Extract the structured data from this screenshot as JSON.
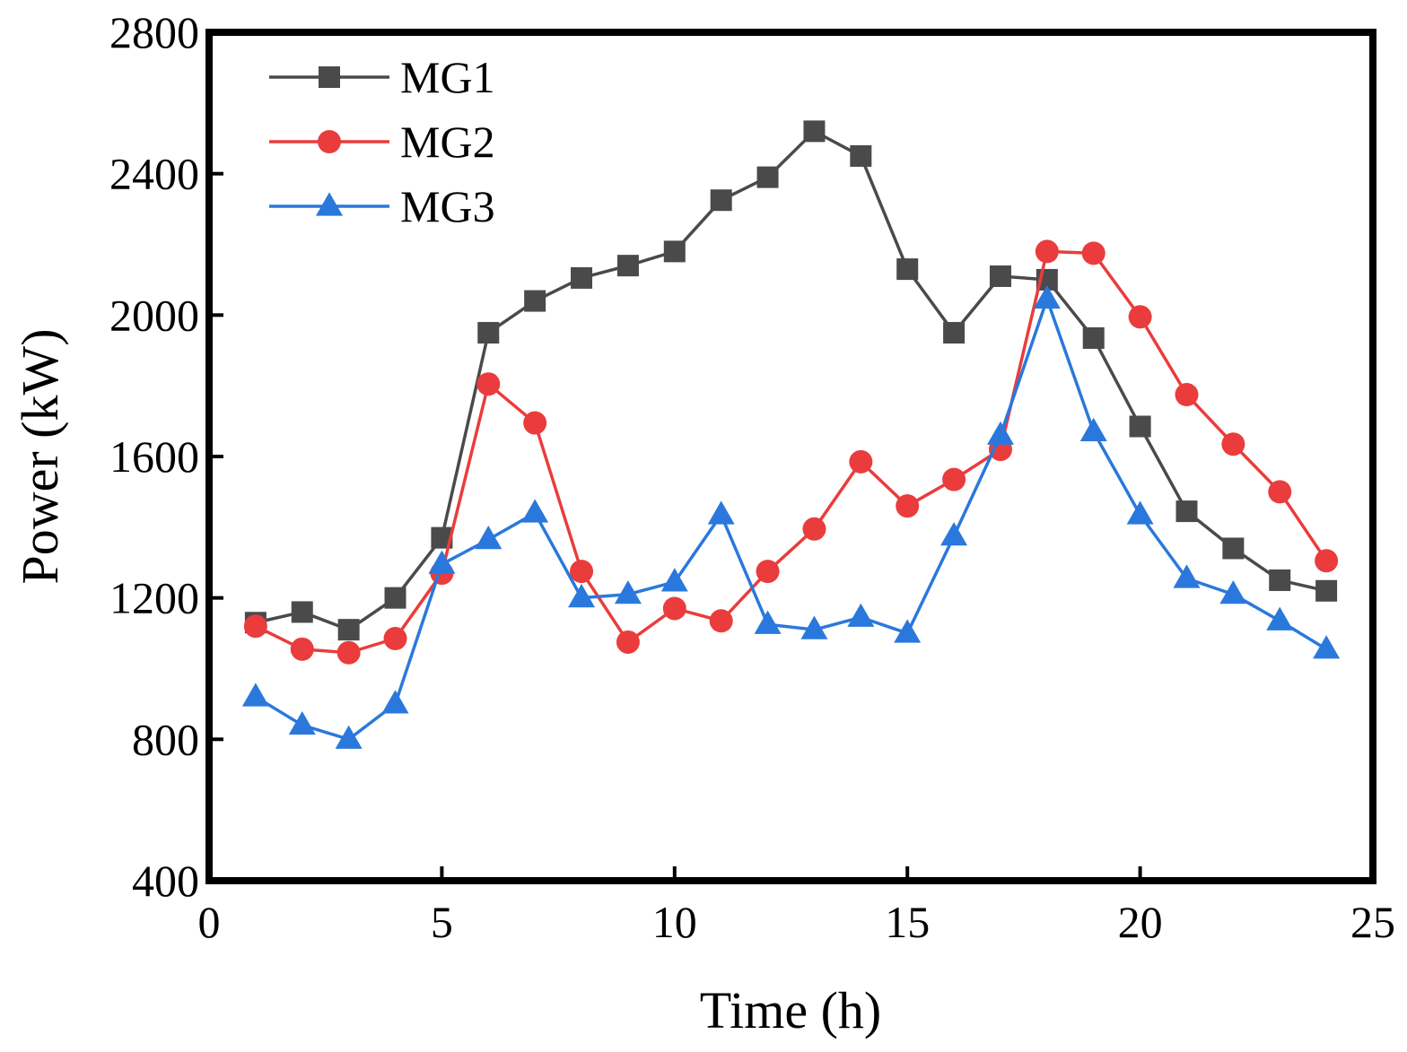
{
  "chart_data": {
    "type": "line",
    "title": "",
    "xlabel": "Time (h)",
    "ylabel": "Power (kW)",
    "xlim": [
      0,
      25
    ],
    "ylim": [
      400,
      2800
    ],
    "xticks": [
      0,
      5,
      10,
      15,
      20,
      25
    ],
    "yticks": [
      400,
      800,
      1200,
      1600,
      2000,
      2400,
      2800
    ],
    "grid": false,
    "legend_position": "top-left",
    "x": [
      1,
      2,
      3,
      4,
      5,
      6,
      7,
      8,
      9,
      10,
      11,
      12,
      13,
      14,
      15,
      16,
      17,
      18,
      19,
      20,
      21,
      22,
      23,
      24
    ],
    "series": [
      {
        "name": "MG1",
        "color": "#4a4a4a",
        "marker": "square",
        "values": [
          1130,
          1160,
          1110,
          1200,
          1370,
          1950,
          2040,
          2105,
          2140,
          2180,
          2325,
          2390,
          2520,
          2450,
          2130,
          1950,
          2110,
          2100,
          1935,
          1685,
          1445,
          1340,
          1250,
          1220
        ]
      },
      {
        "name": "MG2",
        "color": "#ea3c3c",
        "marker": "circle",
        "values": [
          1120,
          1055,
          1045,
          1085,
          1270,
          1805,
          1695,
          1275,
          1075,
          1170,
          1135,
          1275,
          1395,
          1585,
          1460,
          1535,
          1620,
          2180,
          2175,
          1995,
          1775,
          1635,
          1500,
          1305
        ]
      },
      {
        "name": "MG3",
        "color": "#2a78dc",
        "marker": "triangle",
        "values": [
          920,
          840,
          800,
          900,
          1295,
          1365,
          1440,
          1200,
          1210,
          1245,
          1435,
          1125,
          1110,
          1145,
          1100,
          1375,
          1660,
          2045,
          1670,
          1435,
          1255,
          1210,
          1135,
          1055
        ]
      }
    ]
  }
}
